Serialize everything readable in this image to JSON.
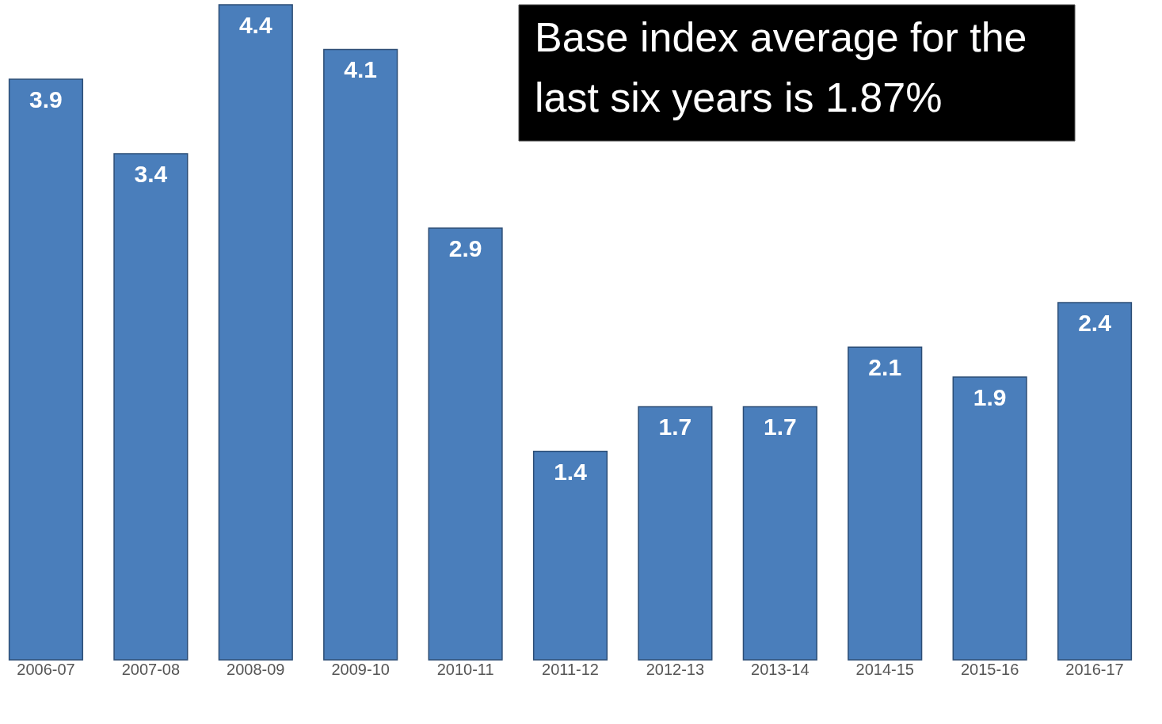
{
  "chart_data": {
    "type": "bar",
    "categories": [
      "2006-07",
      "2007-08",
      "2008-09",
      "2009-10",
      "2010-11",
      "2011-12",
      "2012-13",
      "2013-14",
      "2014-15",
      "2015-16",
      "2016-17"
    ],
    "values": [
      3.9,
      3.4,
      4.4,
      4.1,
      2.9,
      1.4,
      1.7,
      1.7,
      2.1,
      1.9,
      2.4
    ],
    "color": "#4a7ebb",
    "data_labels": true,
    "grid": false,
    "tick_labels": "x",
    "annotations": [
      "Base index average for the last six years is 1.87%"
    ]
  }
}
